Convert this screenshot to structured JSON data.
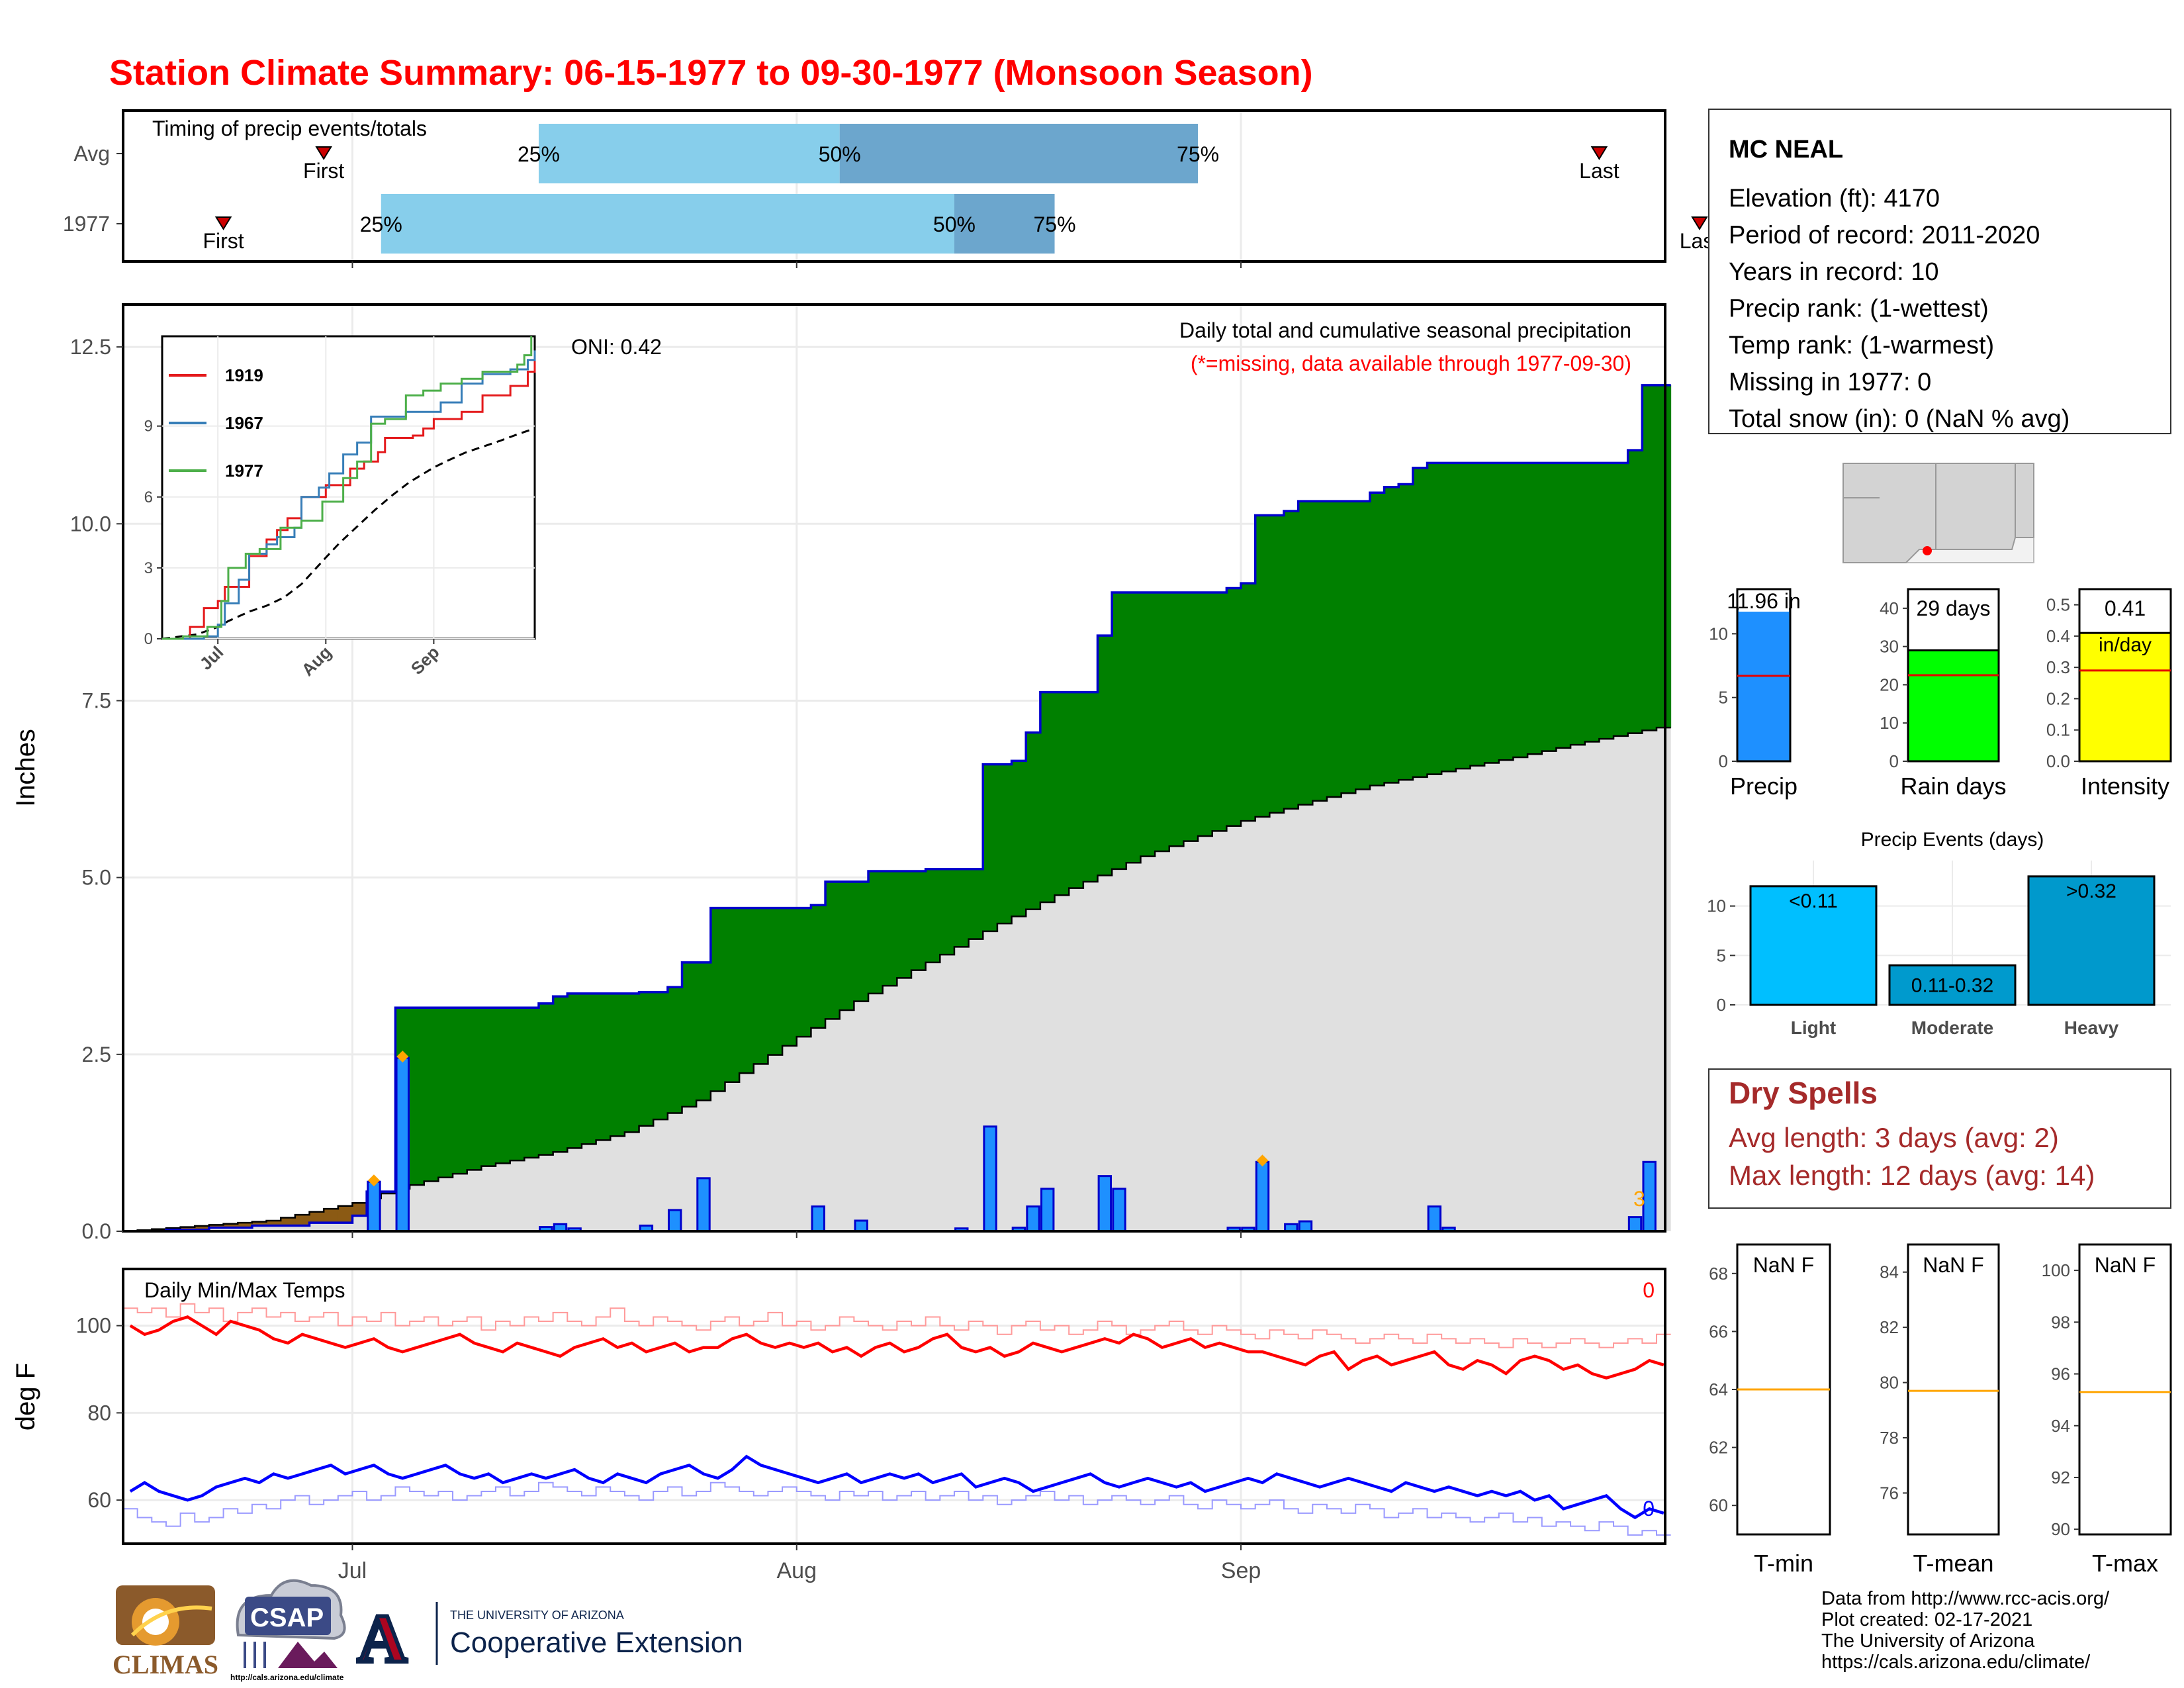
{
  "title": "Station Climate Summary: 06-15-1977 to 09-30-1977 (Monsoon Season)",
  "colors": {
    "title": "#ff0000",
    "precip_fill": "#008000",
    "normal_fill": "#e0e0e0",
    "bars": "#1e90ff",
    "bar_edge": "#0000cc",
    "tmax": "#ff0000",
    "tmin": "#0000ff",
    "rain_days": "#00ff00",
    "intensity": "#ffff00",
    "light": "#00bfff",
    "moderate": "#009acd",
    "heavy": "#0099cc",
    "dry_spells": "#a52a2a",
    "timing_light": "#87ceeb",
    "timing_dark": "#6ca6cd",
    "missing_marker": "#ffa500"
  },
  "timing": {
    "title": "Timing of precip events/totals",
    "rows": [
      {
        "label": "Avg",
        "first": "First",
        "last": "Last",
        "first_date": "1977-06-29",
        "last_date": "1977-09-26",
        "q25": "25%",
        "q50": "50%",
        "q75": "75%",
        "q25_date": "1977-07-14",
        "q50_date": "1977-08-04",
        "q75_date": "1977-08-29"
      },
      {
        "label": "1977",
        "first": "First",
        "last": "Last",
        "first_date": "1977-06-22",
        "last_date": "1977-10-03",
        "q25": "25%",
        "q50": "50%",
        "q75": "75%",
        "q25_date": "1977-07-03",
        "q50_date": "1977-08-12",
        "q75_date": "1977-08-19"
      }
    ]
  },
  "main": {
    "annotation_title": "Daily total and cumulative seasonal precipitation",
    "annotation_missing": "(*=missing, data available through 1977-09-30)",
    "oni": "ONI: 0.42",
    "ylabel": "Inches",
    "yticks": [
      "0.0",
      "2.5",
      "5.0",
      "7.5",
      "10.0",
      "12.5"
    ],
    "missing_count": "3"
  },
  "temps": {
    "title": "Daily Min/Max Temps",
    "ylabel": "deg F",
    "yticks": [
      "60",
      "80",
      "100"
    ],
    "tmax_missing": "0",
    "tmin_missing": "0"
  },
  "xaxis": {
    "labels": [
      "Jul",
      "Aug",
      "Sep"
    ]
  },
  "inset": {
    "legend": [
      "1919",
      "1967",
      "1977"
    ],
    "yticks": [
      "0",
      "3",
      "6",
      "9"
    ],
    "xticks": [
      "Jul",
      "Aug",
      "Sep"
    ],
    "colors": [
      "#e41a1c",
      "#377eb8",
      "#4daf4a"
    ]
  },
  "station": {
    "name": "MC NEAL",
    "lines": [
      "Elevation (ft): 4170",
      "Period of record: 2011-2020",
      "Years in record: 10",
      "Precip rank:  (1-wettest)",
      "Temp rank:  (1-warmest)",
      "Missing in 1977: 0",
      "Total snow (in): 0 (NaN % avg)"
    ]
  },
  "summary_bars": [
    {
      "label": "Precip",
      "value_text": "11.96 in",
      "value": 11.96,
      "avg": 6.7,
      "ymax": 13.5,
      "yticks": [
        "0",
        "5",
        "10"
      ],
      "tick_vals": [
        0,
        5,
        10
      ],
      "color": "#1e90ff",
      "unit": ""
    },
    {
      "label": "Rain days",
      "value_text": "29 days",
      "value": 29,
      "avg": 22.5,
      "ymax": 45,
      "yticks": [
        "0",
        "10",
        "20",
        "30",
        "40"
      ],
      "tick_vals": [
        0,
        10,
        20,
        30,
        40
      ],
      "color": "#00ff00",
      "unit": ""
    },
    {
      "label": "Intensity",
      "value_text": "0.41",
      "value": 0.41,
      "avg": 0.29,
      "ymax": 0.55,
      "yticks": [
        "0.0",
        "0.1",
        "0.2",
        "0.3",
        "0.4",
        "0.5"
      ],
      "tick_vals": [
        0,
        0.1,
        0.2,
        0.3,
        0.4,
        0.5
      ],
      "color": "#ffff00",
      "unit": "in/day"
    }
  ],
  "events": {
    "title": "Precip Events (days)",
    "categories": [
      "Light",
      "Moderate",
      "Heavy"
    ],
    "bar_labels": [
      "<0.11",
      "0.11-0.32",
      ">0.32"
    ],
    "values": [
      12,
      4,
      13
    ],
    "yticks": [
      "0",
      "5",
      "10"
    ]
  },
  "dry_spells": {
    "title": "Dry Spells",
    "avg": "Avg length: 3 days (avg: 2)",
    "max": "Max length: 12 days (avg: 14)"
  },
  "temp_summary": [
    {
      "label": "T-min",
      "value_text": "NaN F",
      "yticks": [
        "60",
        "62",
        "64",
        "66",
        "68"
      ],
      "avg": 64.0,
      "ymin": 59,
      "ymax": 69
    },
    {
      "label": "T-mean",
      "value_text": "NaN F",
      "yticks": [
        "76",
        "78",
        "80",
        "82",
        "84"
      ],
      "avg": 79.7,
      "ymin": 74.5,
      "ymax": 85
    },
    {
      "label": "T-max",
      "value_text": "NaN F",
      "yticks": [
        "90",
        "92",
        "94",
        "96",
        "98",
        "100"
      ],
      "avg": 95.3,
      "ymin": 89.8,
      "ymax": 101
    }
  ],
  "footer": {
    "lines": [
      "Data from http://www.rcc-acis.org/",
      "Plot created: 02-17-2021",
      "The University of Arizona",
      "https://cals.arizona.edu/climate/"
    ],
    "climas": "CLIMAS",
    "csap": "CSAP",
    "csap_url": "http://cals.arizona.edu/climate",
    "ua_small": "THE UNIVERSITY OF ARIZONA",
    "ua_big": "Cooperative Extension",
    "ua_letter": "A"
  },
  "chart_data": {
    "type": "area",
    "title": "Station Climate Summary: 06-15-1977 to 09-30-1977 (Monsoon Season)",
    "ylabel": "Inches",
    "ylim": [
      0,
      13.1
    ],
    "x_start": "1977-06-15",
    "x_end": "1977-09-30",
    "cumulative_1977": [
      [
        "1977-06-15",
        0
      ],
      [
        "1977-06-18",
        0.02
      ],
      [
        "1977-06-21",
        0.05
      ],
      [
        "1977-06-24",
        0.08
      ],
      [
        "1977-06-28",
        0.12
      ],
      [
        "1977-07-01",
        0.22
      ],
      [
        "1977-07-02",
        0.56
      ],
      [
        "1977-07-03",
        0.56
      ],
      [
        "1977-07-04",
        3.16
      ],
      [
        "1977-07-14",
        3.22
      ],
      [
        "1977-07-15",
        3.32
      ],
      [
        "1977-07-16",
        3.36
      ],
      [
        "1977-07-21",
        3.38
      ],
      [
        "1977-07-23",
        3.45
      ],
      [
        "1977-07-24",
        3.8
      ],
      [
        "1977-07-26",
        4.57
      ],
      [
        "1977-08-02",
        4.61
      ],
      [
        "1977-08-03",
        4.94
      ],
      [
        "1977-08-06",
        5.09
      ],
      [
        "1977-08-10",
        5.12
      ],
      [
        "1977-08-14",
        6.6
      ],
      [
        "1977-08-16",
        6.65
      ],
      [
        "1977-08-17",
        7.05
      ],
      [
        "1977-08-18",
        7.62
      ],
      [
        "1977-08-22",
        8.42
      ],
      [
        "1977-08-23",
        9.03
      ],
      [
        "1977-08-31",
        9.09
      ],
      [
        "1977-09-01",
        9.16
      ],
      [
        "1977-09-02",
        10.12
      ],
      [
        "1977-09-03",
        10.12
      ],
      [
        "1977-09-04",
        10.18
      ],
      [
        "1977-09-05",
        10.32
      ],
      [
        "1977-09-10",
        10.44
      ],
      [
        "1977-09-11",
        10.52
      ],
      [
        "1977-09-12",
        10.56
      ],
      [
        "1977-09-13",
        10.79
      ],
      [
        "1977-09-14",
        10.86
      ],
      [
        "1977-09-27",
        10.86
      ],
      [
        "1977-09-28",
        11.04
      ],
      [
        "1977-09-29",
        11.96
      ],
      [
        "1977-09-30",
        11.96
      ]
    ],
    "average_cumulative": [
      [
        "1977-06-15",
        0
      ],
      [
        "1977-06-25",
        0.15
      ],
      [
        "1977-07-01",
        0.4
      ],
      [
        "1977-07-04",
        0.6
      ],
      [
        "1977-07-10",
        0.92
      ],
      [
        "1977-07-15",
        1.12
      ],
      [
        "1977-07-20",
        1.4
      ],
      [
        "1977-07-25",
        1.85
      ],
      [
        "1977-08-01",
        2.75
      ],
      [
        "1977-08-05",
        3.25
      ],
      [
        "1977-08-10",
        3.8
      ],
      [
        "1977-08-15",
        4.35
      ],
      [
        "1977-08-20",
        4.85
      ],
      [
        "1977-08-25",
        5.3
      ],
      [
        "1977-09-01",
        5.8
      ],
      [
        "1977-09-05",
        6.03
      ],
      [
        "1977-09-10",
        6.3
      ],
      [
        "1977-09-15",
        6.5
      ],
      [
        "1977-09-20",
        6.7
      ],
      [
        "1977-09-25",
        6.92
      ],
      [
        "1977-09-30",
        7.12
      ]
    ],
    "daily_precip": [
      [
        "1977-07-02",
        0.7
      ],
      [
        "1977-07-04",
        2.45
      ],
      [
        "1977-07-14",
        0.06
      ],
      [
        "1977-07-15",
        0.1
      ],
      [
        "1977-07-16",
        0.04
      ],
      [
        "1977-07-21",
        0.08
      ],
      [
        "1977-07-23",
        0.3
      ],
      [
        "1977-07-25",
        0.75
      ],
      [
        "1977-08-02",
        0.35
      ],
      [
        "1977-08-05",
        0.15
      ],
      [
        "1977-08-12",
        0.04
      ],
      [
        "1977-08-14",
        1.48
      ],
      [
        "1977-08-16",
        0.05
      ],
      [
        "1977-08-17",
        0.35
      ],
      [
        "1977-08-18",
        0.6
      ],
      [
        "1977-08-22",
        0.78
      ],
      [
        "1977-08-23",
        0.6
      ],
      [
        "1977-08-31",
        0.05
      ],
      [
        "1977-09-01",
        0.05
      ],
      [
        "1977-09-02",
        0.98
      ],
      [
        "1977-09-04",
        0.1
      ],
      [
        "1977-09-05",
        0.14
      ],
      [
        "1977-09-14",
        0.35
      ],
      [
        "1977-09-15",
        0.05
      ],
      [
        "1977-09-28",
        0.2
      ],
      [
        "1977-09-29",
        0.98
      ]
    ],
    "missing_days": [
      "1977-07-02",
      "1977-07-04",
      "1977-09-02"
    ],
    "tmax_1977": [
      100,
      98,
      99,
      101,
      102,
      100,
      98,
      101,
      100,
      99,
      97,
      96,
      98,
      97,
      96,
      95,
      96,
      97,
      95,
      94,
      95,
      96,
      97,
      98,
      96,
      95,
      94,
      96,
      95,
      94,
      93,
      95,
      96,
      97,
      95,
      96,
      94,
      95,
      96,
      94,
      95,
      95,
      97,
      98,
      96,
      95,
      96,
      95,
      96,
      94,
      95,
      93,
      95,
      96,
      94,
      95,
      97,
      98,
      95,
      94,
      95,
      93,
      94,
      96,
      95,
      94,
      95,
      96,
      97,
      96,
      98,
      97,
      95,
      96,
      97,
      95,
      96,
      95,
      94,
      94,
      93,
      92,
      91,
      93,
      94,
      90,
      92,
      93,
      91,
      92,
      93,
      94,
      91,
      90,
      92,
      91,
      89,
      92,
      93,
      92,
      90,
      91,
      89,
      88,
      89,
      90,
      92,
      91
    ],
    "tmin_1977": [
      62,
      64,
      62,
      61,
      60,
      61,
      63,
      64,
      65,
      64,
      66,
      65,
      66,
      67,
      68,
      66,
      67,
      68,
      66,
      65,
      66,
      67,
      68,
      66,
      65,
      66,
      64,
      65,
      66,
      65,
      66,
      67,
      65,
      64,
      66,
      65,
      64,
      66,
      67,
      68,
      66,
      65,
      67,
      70,
      68,
      67,
      66,
      65,
      64,
      65,
      66,
      64,
      65,
      66,
      65,
      66,
      64,
      65,
      66,
      63,
      64,
      65,
      64,
      62,
      63,
      64,
      65,
      66,
      64,
      63,
      64,
      65,
      64,
      63,
      64,
      62,
      63,
      64,
      65,
      64,
      66,
      65,
      64,
      63,
      64,
      65,
      64,
      63,
      62,
      64,
      63,
      62,
      63,
      62,
      61,
      62,
      61,
      62,
      60,
      61,
      58,
      59,
      60,
      61,
      58,
      56,
      58,
      57
    ],
    "tmax_avg": [
      104,
      103,
      104,
      102,
      105,
      103,
      104,
      101,
      103,
      104,
      102,
      103,
      101,
      102,
      103,
      100,
      102,
      101,
      103,
      100,
      101,
      102,
      100,
      101,
      102,
      99,
      101,
      100,
      102,
      101,
      103,
      101,
      100,
      102,
      104,
      101,
      100,
      102,
      101,
      100,
      99,
      101,
      102,
      100,
      101,
      103,
      100,
      101,
      99,
      100,
      102,
      101,
      100,
      99,
      101,
      100,
      102,
      100,
      99,
      101,
      100,
      98,
      100,
      101,
      99,
      100,
      98,
      99,
      101,
      100,
      98,
      99,
      100,
      101,
      99,
      98,
      100,
      99,
      98,
      97,
      99,
      98,
      97,
      99,
      98,
      97,
      96,
      97,
      98,
      97,
      96,
      98,
      97,
      96,
      97,
      96,
      95,
      97,
      96,
      95,
      96,
      97,
      96,
      95,
      96,
      97,
      96,
      98
    ],
    "tmin_avg": [
      58,
      56,
      55,
      54,
      57,
      55,
      56,
      58,
      57,
      59,
      58,
      60,
      61,
      59,
      60,
      61,
      62,
      60,
      61,
      63,
      62,
      61,
      62,
      60,
      61,
      62,
      63,
      61,
      62,
      64,
      63,
      62,
      61,
      63,
      62,
      61,
      60,
      62,
      63,
      61,
      62,
      64,
      63,
      62,
      61,
      62,
      63,
      62,
      61,
      60,
      62,
      61,
      62,
      60,
      61,
      62,
      60,
      61,
      62,
      60,
      61,
      59,
      60,
      61,
      62,
      60,
      61,
      59,
      60,
      61,
      60,
      59,
      60,
      61,
      59,
      58,
      60,
      59,
      58,
      59,
      60,
      58,
      57,
      59,
      58,
      57,
      59,
      58,
      56,
      57,
      58,
      56,
      57,
      56,
      55,
      56,
      57,
      55,
      56,
      54,
      55,
      54,
      53,
      55,
      54,
      52,
      53,
      52
    ],
    "summary": {
      "precip_in": 11.96,
      "precip_avg": 6.7,
      "rain_days": 29,
      "rain_days_avg": 22.5,
      "intensity": 0.41,
      "intensity_avg": 0.29
    },
    "events": {
      "categories": [
        "Light",
        "Moderate",
        "Heavy"
      ],
      "values": [
        12,
        4,
        13
      ]
    }
  }
}
